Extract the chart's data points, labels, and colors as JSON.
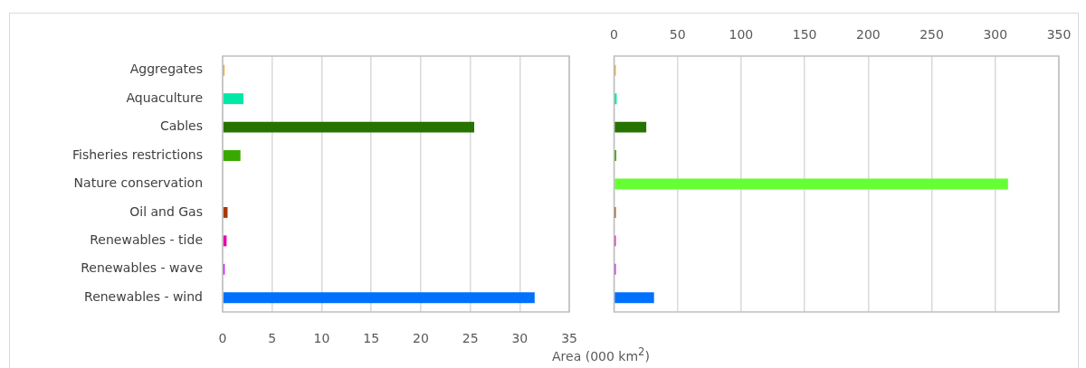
{
  "chart_data": [
    {
      "type": "bar",
      "orientation": "horizontal",
      "categories": [
        "Aggregates",
        "Aquaculture",
        "Cables",
        "Fisheries restrictions",
        "Nature conservation",
        "Oil and Gas",
        "Renewables - tide",
        "Renewables - wave",
        "Renewables - wind"
      ],
      "values": [
        0.1,
        2.1,
        25.4,
        1.8,
        null,
        0.5,
        0.4,
        0.2,
        31.5
      ],
      "colors": [
        "#e8a020",
        "#00e8a8",
        "#267300",
        "#38a800",
        "#66ff33",
        "#a83800",
        "#e600a9",
        "#c500ff",
        "#0070ff"
      ],
      "xlim": [
        0,
        35
      ],
      "xticks": [
        0,
        5,
        10,
        15,
        20,
        25,
        30,
        35
      ],
      "grid": "x",
      "xlabel": "Area (000 km$^{2}$)"
    },
    {
      "type": "bar",
      "orientation": "horizontal",
      "categories": [
        null,
        null,
        null,
        null,
        null,
        null,
        null,
        null,
        null
      ],
      "values": [
        0.1,
        2.1,
        25.4,
        1.8,
        310,
        0.5,
        0.4,
        0.2,
        31.5
      ],
      "colors": [
        "#e8a020",
        "#00e8a8",
        "#267300",
        "#38a800",
        "#66ff33",
        "#a83800",
        "#e600a9",
        "#c500ff",
        "#0070ff"
      ],
      "xlim": [
        0,
        350
      ],
      "xticks": [
        0,
        50,
        100,
        150,
        200,
        250,
        300,
        350
      ],
      "grid": "x",
      "tick_labels": "x"
    }
  ]
}
